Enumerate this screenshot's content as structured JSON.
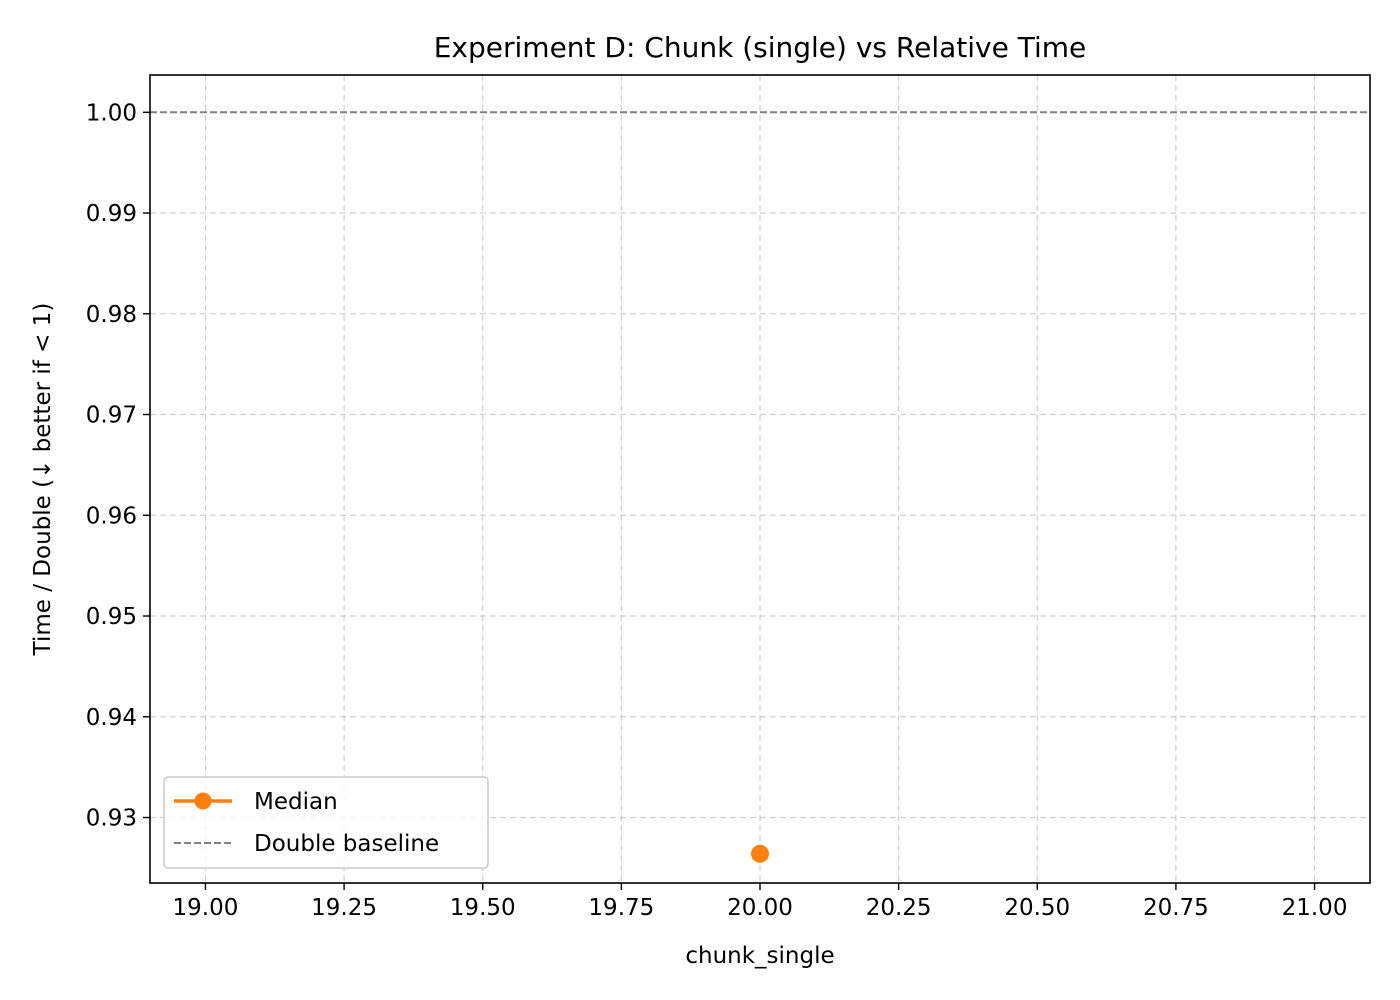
{
  "chart_data": {
    "type": "line",
    "title": "Experiment D: Chunk (single) vs Relative Time",
    "xlabel": "chunk_single",
    "ylabel": "Time / Double (↓ better if < 1)",
    "xlim": [
      18.9,
      21.1
    ],
    "ylim": [
      0.9235,
      1.0037
    ],
    "xticks": [
      19.0,
      19.25,
      19.5,
      19.75,
      20.0,
      20.25,
      20.5,
      20.75,
      21.0
    ],
    "xtick_labels": [
      "19.00",
      "19.25",
      "19.50",
      "19.75",
      "20.00",
      "20.25",
      "20.50",
      "20.75",
      "21.00"
    ],
    "yticks": [
      0.93,
      0.94,
      0.95,
      0.96,
      0.97,
      0.98,
      0.99,
      1.0
    ],
    "ytick_labels": [
      "0.93",
      "0.94",
      "0.95",
      "0.96",
      "0.97",
      "0.98",
      "0.99",
      "1.00"
    ],
    "grid": true,
    "legend_position": "lower-left",
    "series": [
      {
        "name": "Median",
        "x": [
          20
        ],
        "y": [
          0.9264
        ],
        "color": "#ff7f0e",
        "style": "solid",
        "marker": "circle"
      }
    ],
    "reference_lines": [
      {
        "name": "Double baseline",
        "y": 1.0,
        "color": "#808080",
        "style": "dashed"
      }
    ]
  }
}
